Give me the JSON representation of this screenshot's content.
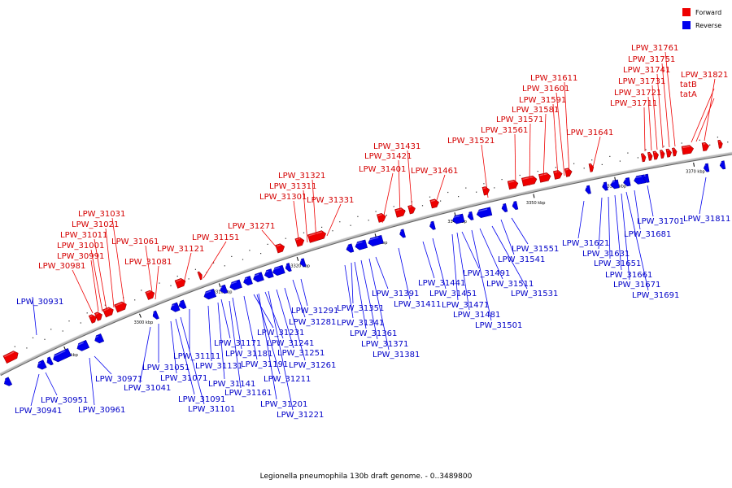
{
  "caption": "Legionella pneumophila 130b draft genome. - 0..3489800",
  "legend": {
    "forward": {
      "label": "Forward",
      "color": "#ee0000"
    },
    "reverse": {
      "label": "Reverse",
      "color": "#0000ee"
    }
  },
  "scale_ticks": [
    "3290 kbp",
    "3300 kbp",
    "3310 kbp",
    "3320 kbp",
    "3330 kbp",
    "3340 kbp",
    "3350 kbp",
    "3360 kbp",
    "3370 kbp"
  ],
  "forward_labels": [
    "LPW_30981",
    "LPW_30991",
    "LPW_31001",
    "LPW_31011",
    "LPW_31021",
    "LPW_31031",
    "LPW_31061",
    "LPW_31081",
    "LPW_31121",
    "LPW_31151",
    "LPW_31271",
    "LPW_31301",
    "LPW_31311",
    "LPW_31321",
    "LPW_31331",
    "LPW_31401",
    "LPW_31421",
    "LPW_31431",
    "LPW_31461",
    "LPW_31521",
    "LPW_31561",
    "LPW_31571",
    "LPW_31581",
    "LPW_31591",
    "LPW_31601",
    "LPW_31611",
    "LPW_31641",
    "LPW_31711",
    "LPW_31721",
    "LPW_31731",
    "LPW_31741",
    "LPW_31751",
    "LPW_31761",
    "LPW_31821",
    "tatB",
    "tatA"
  ],
  "reverse_labels": [
    "LPW_30931",
    "LPW_30941",
    "LPW_30951",
    "LPW_30961",
    "LPW_30971",
    "LPW_31041",
    "LPW_31051",
    "LPW_31071",
    "LPW_31091",
    "LPW_31101",
    "LPW_31111",
    "LPW_31131",
    "LPW_31141",
    "LPW_31161",
    "LPW_31171",
    "LPW_31181",
    "LPW_31191",
    "LPW_31201",
    "LPW_31211",
    "LPW_31221",
    "LPW_31231",
    "LPW_31241",
    "LPW_31251",
    "LPW_31261",
    "LPW_31281",
    "LPW_31291",
    "LPW_31341",
    "LPW_31351",
    "LPW_31361",
    "LPW_31371",
    "LPW_31381",
    "LPW_31391",
    "LPW_31411",
    "LPW_31441",
    "LPW_31451",
    "LPW_31471",
    "LPW_31481",
    "LPW_31491",
    "LPW_31501",
    "LPW_31511",
    "LPW_31531",
    "LPW_31541",
    "LPW_31551",
    "LPW_31621",
    "LPW_31631",
    "LPW_31651",
    "LPW_31661",
    "LPW_31671",
    "LPW_31681",
    "LPW_31691",
    "LPW_31701",
    "LPW_31811"
  ]
}
